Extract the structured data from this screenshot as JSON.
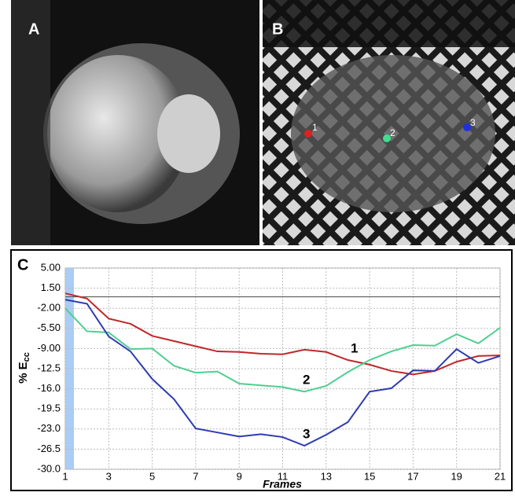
{
  "panels": [
    "A",
    "B"
  ],
  "chart_data": {
    "type": "line",
    "panel_label": "C",
    "xlabel": "Frames",
    "ylabel": {
      "text": "% E",
      "subscript": "cc"
    },
    "x": [
      1,
      2,
      3,
      4,
      5,
      6,
      7,
      8,
      9,
      10,
      11,
      12,
      13,
      14,
      15,
      16,
      17,
      18,
      19,
      20,
      21
    ],
    "xlim": [
      1,
      21
    ],
    "xticks": [
      1,
      3,
      5,
      7,
      9,
      11,
      13,
      15,
      17,
      19,
      21
    ],
    "ylim": [
      -30,
      5
    ],
    "yticks": [
      {
        "value": 5,
        "label": "5.00"
      },
      {
        "value": 1.5,
        "label": "1.50"
      },
      {
        "value": -2,
        "label": "-2.00"
      },
      {
        "value": -5.5,
        "label": "-5.50"
      },
      {
        "value": -9,
        "label": "-9.00"
      },
      {
        "value": -12.5,
        "label": "-12.5"
      },
      {
        "value": -16,
        "label": "-16.0"
      },
      {
        "value": -19.5,
        "label": "-19.5"
      },
      {
        "value": -23,
        "label": "-23.0"
      },
      {
        "value": -26.5,
        "label": "-26.5"
      },
      {
        "value": -30,
        "label": "-30.0"
      }
    ],
    "grid": true,
    "series": [
      {
        "name": "1",
        "color": "#c0282a",
        "values": [
          0.6,
          -0.3,
          -3.8,
          -4.7,
          -6.8,
          -7.7,
          -8.6,
          -9.5,
          -9.6,
          -9.9,
          -10,
          -9.2,
          -9.6,
          -11,
          -11.8,
          -12.9,
          -13.5,
          -12.9,
          -11.3,
          -10.3,
          -10.2
        ]
      },
      {
        "name": "2",
        "color": "#4fcf90",
        "values": [
          -2,
          -6,
          -6.2,
          -9.1,
          -9,
          -12,
          -13.2,
          -13,
          -15.1,
          -15.4,
          -15.7,
          -16.5,
          -15.5,
          -13.1,
          -11,
          -9.5,
          -8.4,
          -8.5,
          -6.5,
          -8.1,
          -5.4
        ]
      },
      {
        "name": "3",
        "color": "#2d3bb0",
        "values": [
          -0.5,
          -1.2,
          -6.9,
          -9.5,
          -14.3,
          -17.8,
          -22.9,
          -23.6,
          -24.3,
          -23.9,
          -24.4,
          -25.9,
          -24,
          -21.8,
          -16.5,
          -15.9,
          -12.8,
          -12.9,
          -9.1,
          -11.5,
          -10.3
        ]
      }
    ]
  }
}
